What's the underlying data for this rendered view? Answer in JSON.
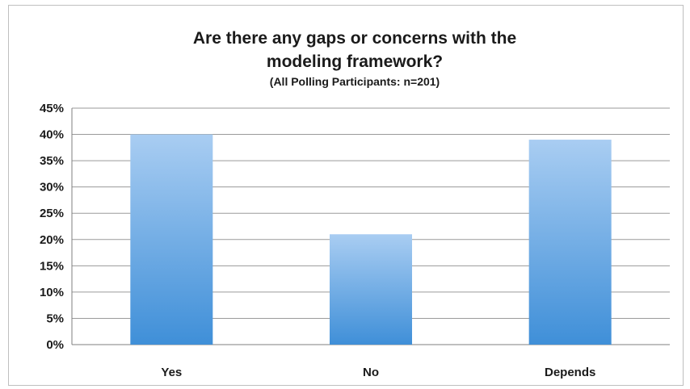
{
  "chart_data": {
    "type": "bar",
    "title_lines": [
      "Are there any gaps or concerns with the",
      "modeling framework?"
    ],
    "subtitle": "(All Polling Participants: n=201)",
    "categories": [
      "Yes",
      "No",
      "Depends"
    ],
    "values": [
      40,
      21,
      39
    ],
    "value_unit": "%",
    "ylim": [
      0,
      45
    ],
    "yticks": [
      "0%",
      "5%",
      "10%",
      "15%",
      "20%",
      "25%",
      "30%",
      "35%",
      "40%",
      "45%"
    ],
    "xlabel": "",
    "ylabel": "",
    "grid": true,
    "legend": "none",
    "colors": {
      "bar_top": "#a9cdf2",
      "bar_bottom": "#3f8fd8",
      "grid": "#9a9a9a",
      "text": "#1a1a1a"
    }
  }
}
